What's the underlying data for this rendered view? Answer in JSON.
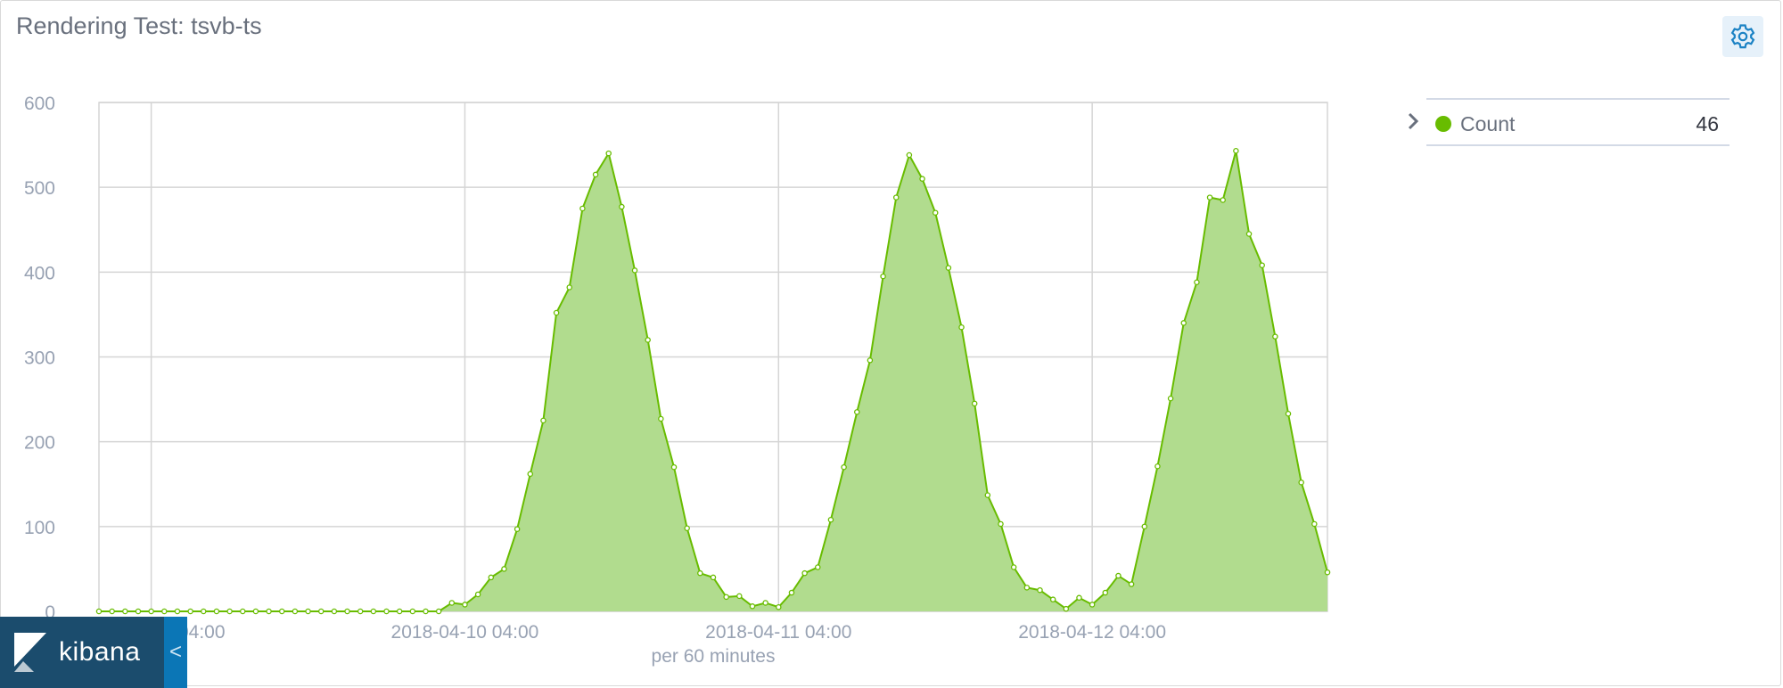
{
  "panel": {
    "title": "Rendering Test: tsvb-ts"
  },
  "settings": {
    "icon": "gear-icon"
  },
  "legend": {
    "items": [
      {
        "name": "Count",
        "value": "46",
        "color": "#68bc00"
      }
    ],
    "toggle_icon": "chevron-right-icon"
  },
  "badge": {
    "label": "kibana",
    "collapse_glyph": "<",
    "logo_icon": "kibana-logo-icon"
  },
  "colors": {
    "series_line": "#68bc00",
    "series_fill": "#b1dc8e",
    "grid": "#d5d5d5"
  },
  "chart_data": {
    "type": "area",
    "title": "",
    "xlabel": "per 60 minutes",
    "ylabel": "",
    "ylim": [
      0,
      600
    ],
    "yticks": [
      0,
      100,
      200,
      300,
      400,
      500,
      600
    ],
    "xticks": [
      "2018-04-09 04:00",
      "2018-04-10 04:00",
      "2018-04-11 04:00",
      "2018-04-12 04:00"
    ],
    "x_start": "2018-04-09 00:00",
    "x_end": "2018-04-12 23:00",
    "x_step": "60 minutes",
    "grid": true,
    "legend_position": "right",
    "series": [
      {
        "name": "Count",
        "values": [
          0,
          0,
          0,
          0,
          0,
          0,
          0,
          0,
          0,
          0,
          0,
          0,
          0,
          0,
          0,
          0,
          0,
          0,
          0,
          0,
          0,
          0,
          0,
          0,
          0,
          0,
          0,
          10,
          8,
          20,
          40,
          50,
          97,
          162,
          225,
          352,
          382,
          475,
          515,
          540,
          477,
          402,
          320,
          227,
          170,
          98,
          45,
          40,
          17,
          18,
          6,
          10,
          5,
          22,
          45,
          52,
          108,
          170,
          235,
          296,
          395,
          488,
          538,
          510,
          470,
          405,
          335,
          245,
          137,
          103,
          52,
          28,
          25,
          14,
          3,
          16,
          8,
          22,
          42,
          32,
          100,
          171,
          251,
          340,
          388,
          488,
          485,
          543,
          445,
          408,
          324,
          233,
          152,
          103,
          46
        ]
      }
    ]
  }
}
